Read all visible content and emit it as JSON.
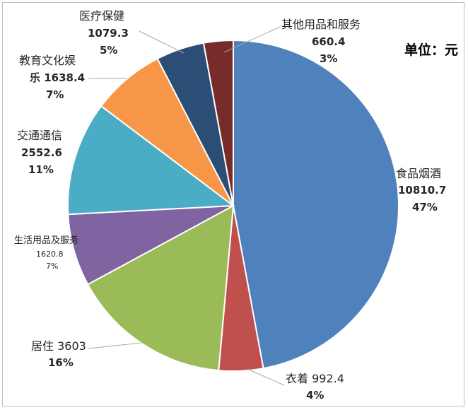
{
  "unit_label": "单位：元",
  "chart_data": {
    "type": "pie",
    "title": "",
    "unit": "单位：元",
    "series": [
      {
        "name": "食品烟酒",
        "value": 10810.7,
        "percent": "47%",
        "color": "#4f81bd"
      },
      {
        "name": "衣着",
        "value": 992.4,
        "percent": "4%",
        "color": "#c0504d"
      },
      {
        "name": "居住",
        "value": 3603,
        "percent": "16%",
        "color": "#9bbb59"
      },
      {
        "name": "生活用品及服务",
        "value": 1620.8,
        "percent": "7%",
        "color": "#8064a2"
      },
      {
        "name": "交通通信",
        "value": 2552.6,
        "percent": "11%",
        "color": "#4bacc6"
      },
      {
        "name": "教育文化娱乐",
        "value": 1638.4,
        "percent": "7%",
        "color": "#f79646"
      },
      {
        "name": "医疗保健",
        "value": 1079.3,
        "percent": "5%",
        "color": "#2c4d75"
      },
      {
        "name": "其他用品和服务",
        "value": 660.4,
        "percent": "3%",
        "color": "#772c2a"
      }
    ],
    "labels": {
      "food": {
        "line1": "食品烟酒",
        "line2": "10810.7",
        "line3": "47%"
      },
      "clothing": {
        "line1": "衣着 992.4",
        "line2": "4%"
      },
      "housing": {
        "line1": "居住 3603",
        "line2": "16%"
      },
      "household": {
        "line1": "生活用品及服务",
        "line2": "1620.8",
        "line3": "7%"
      },
      "transport": {
        "line1": "交通通信",
        "line2": "2552.6",
        "line3": "11%"
      },
      "education": {
        "line1": "教育文化娱",
        "line2": "乐 1638.4",
        "line3": "7%"
      },
      "medical": {
        "line1": "医疗保健",
        "line2": "1079.3",
        "line3": "5%"
      },
      "other": {
        "line1": "其他用品和服务",
        "line2": "660.4",
        "line3": "3%"
      }
    }
  }
}
